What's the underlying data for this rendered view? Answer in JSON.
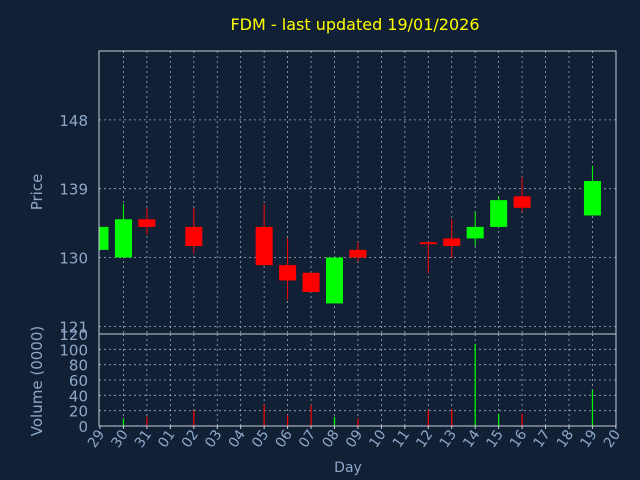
{
  "chart_data": {
    "type": "candlestick",
    "title": "FDM - last updated 19/01/2026",
    "xlabel": "Day",
    "ylabel_price": "Price",
    "ylabel_volume": "Volume (0000)",
    "price_ylim": [
      120,
      157
    ],
    "price_ticks": [
      148,
      139,
      130,
      121
    ],
    "volume_ylim": [
      0,
      120
    ],
    "volume_ticks": [
      120,
      100,
      80,
      60,
      40,
      20,
      0
    ],
    "x_tick_labels": [
      "29",
      "30",
      "31",
      "01",
      "02",
      "03",
      "04",
      "05",
      "06",
      "07",
      "08",
      "09",
      "10",
      "11",
      "12",
      "13",
      "14",
      "15",
      "16",
      "17",
      "18",
      "19",
      "20"
    ],
    "grid": true,
    "colors": {
      "background": "#112035",
      "title": "#ffff00",
      "axis_text": "#8fa8c8",
      "frame": "#c8d0da",
      "up": "#00ff00",
      "down": "#ff0000"
    },
    "candles": [
      {
        "day": "29",
        "open": 131,
        "high": 134,
        "low": 131,
        "close": 134
      },
      {
        "day": "30",
        "open": 130,
        "high": 137,
        "low": 130,
        "close": 135
      },
      {
        "day": "31",
        "open": 135,
        "high": 136.5,
        "low": 133,
        "close": 134
      },
      {
        "day": "02",
        "open": 134,
        "high": 136.5,
        "low": 130.5,
        "close": 131.5
      },
      {
        "day": "05",
        "open": 134,
        "high": 137,
        "low": 129,
        "close": 129
      },
      {
        "day": "06",
        "open": 129,
        "high": 132.5,
        "low": 124.5,
        "close": 127
      },
      {
        "day": "07",
        "open": 128,
        "high": 128,
        "low": 125.5,
        "close": 125.5
      },
      {
        "day": "08",
        "open": 124,
        "high": 130,
        "low": 124,
        "close": 130
      },
      {
        "day": "09",
        "open": 131,
        "high": 132,
        "low": 129.5,
        "close": 130
      },
      {
        "day": "12",
        "open": 132,
        "high": 132,
        "low": 128,
        "close": 131.8
      },
      {
        "day": "13",
        "open": 132.5,
        "high": 135,
        "low": 130,
        "close": 131.5
      },
      {
        "day": "14",
        "open": 132.5,
        "high": 136,
        "low": 131.5,
        "close": 134
      },
      {
        "day": "15",
        "open": 134,
        "high": 138,
        "low": 134,
        "close": 137.5
      },
      {
        "day": "16",
        "open": 138,
        "high": 140.5,
        "low": 136,
        "close": 136.5
      },
      {
        "day": "19",
        "open": 135.5,
        "high": 142,
        "low": 135.5,
        "close": 140
      }
    ],
    "volume": [
      {
        "day": "30",
        "value": 10
      },
      {
        "day": "31",
        "value": 12
      },
      {
        "day": "02",
        "value": 20
      },
      {
        "day": "05",
        "value": 28
      },
      {
        "day": "06",
        "value": 14
      },
      {
        "day": "07",
        "value": 27
      },
      {
        "day": "08",
        "value": 12
      },
      {
        "day": "09",
        "value": 10
      },
      {
        "day": "12",
        "value": 21
      },
      {
        "day": "13",
        "value": 22
      },
      {
        "day": "14",
        "value": 107
      },
      {
        "day": "15",
        "value": 16
      },
      {
        "day": "16",
        "value": 16
      },
      {
        "day": "19",
        "value": 47
      }
    ]
  }
}
